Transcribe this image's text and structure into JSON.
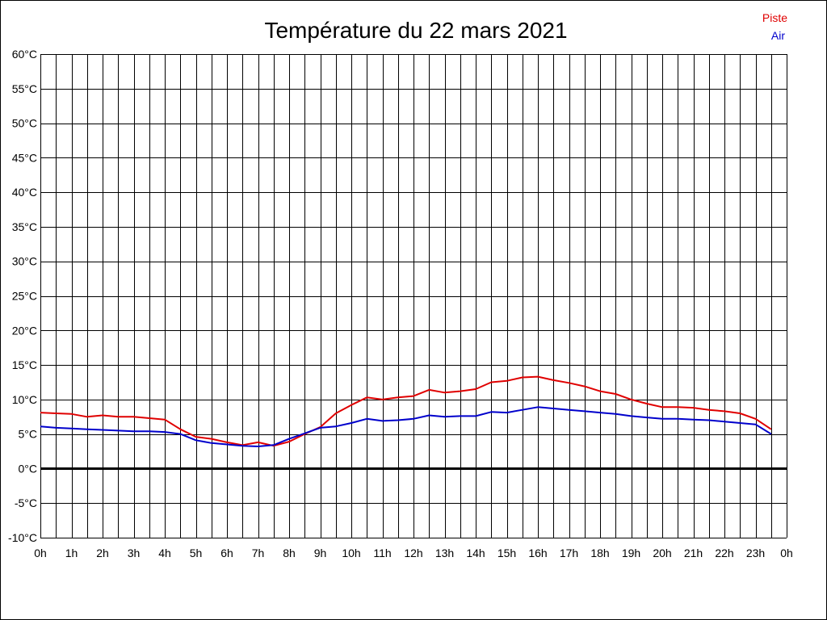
{
  "chart_data": {
    "type": "line",
    "title": "Température du 22 mars 2021",
    "xlabel": "",
    "ylabel": "",
    "x_tick_labels": [
      "0h",
      "1h",
      "2h",
      "3h",
      "4h",
      "5h",
      "6h",
      "7h",
      "8h",
      "9h",
      "10h",
      "11h",
      "12h",
      "13h",
      "14h",
      "15h",
      "16h",
      "17h",
      "18h",
      "19h",
      "20h",
      "21h",
      "22h",
      "23h",
      "0h"
    ],
    "y_tick_labels": [
      "-10°C",
      "-5°C",
      "0°C",
      "5°C",
      "10°C",
      "15°C",
      "20°C",
      "25°C",
      "30°C",
      "35°C",
      "40°C",
      "45°C",
      "50°C",
      "55°C",
      "60°C"
    ],
    "xlim": [
      0,
      24
    ],
    "ylim": [
      -10,
      60
    ],
    "y_step": 5,
    "grid": true,
    "legend_position": "top-right",
    "zero_line": true,
    "x": [
      0,
      0.5,
      1,
      1.5,
      2,
      2.5,
      3,
      3.5,
      4,
      4.5,
      5,
      5.5,
      6,
      6.5,
      7,
      7.5,
      8,
      8.5,
      9,
      9.5,
      10,
      10.5,
      11,
      11.5,
      12,
      12.5,
      13,
      13.5,
      14,
      14.5,
      15,
      15.5,
      16,
      16.5,
      17,
      17.5,
      18,
      18.5,
      19,
      19.5,
      20,
      20.5,
      21,
      21.5,
      22,
      22.5,
      23,
      23.5
    ],
    "series": [
      {
        "name": "Piste",
        "color": "#e00000",
        "values": [
          8.1,
          8.0,
          7.9,
          7.5,
          7.7,
          7.5,
          7.5,
          7.3,
          7.1,
          5.7,
          4.6,
          4.3,
          3.8,
          3.4,
          3.8,
          3.3,
          3.9,
          5.0,
          6.0,
          8.0,
          9.2,
          10.3,
          10.0,
          10.3,
          10.5,
          11.4,
          11.0,
          11.2,
          11.5,
          12.5,
          12.7,
          13.2,
          13.3,
          12.8,
          12.4,
          11.9,
          11.2,
          10.8,
          10.0,
          9.4,
          8.9,
          8.9,
          8.8,
          8.5,
          8.3,
          8.0,
          7.2,
          5.7
        ]
      },
      {
        "name": "Air",
        "color": "#0000cc",
        "values": [
          6.1,
          5.9,
          5.8,
          5.7,
          5.6,
          5.5,
          5.4,
          5.4,
          5.3,
          5.0,
          4.1,
          3.7,
          3.5,
          3.3,
          3.2,
          3.4,
          4.3,
          5.1,
          5.9,
          6.1,
          6.6,
          7.2,
          6.9,
          7.0,
          7.2,
          7.7,
          7.5,
          7.6,
          7.6,
          8.2,
          8.1,
          8.5,
          8.9,
          8.7,
          8.5,
          8.3,
          8.1,
          7.9,
          7.6,
          7.4,
          7.2,
          7.2,
          7.1,
          7.0,
          6.8,
          6.6,
          6.4,
          5.0
        ]
      }
    ]
  }
}
